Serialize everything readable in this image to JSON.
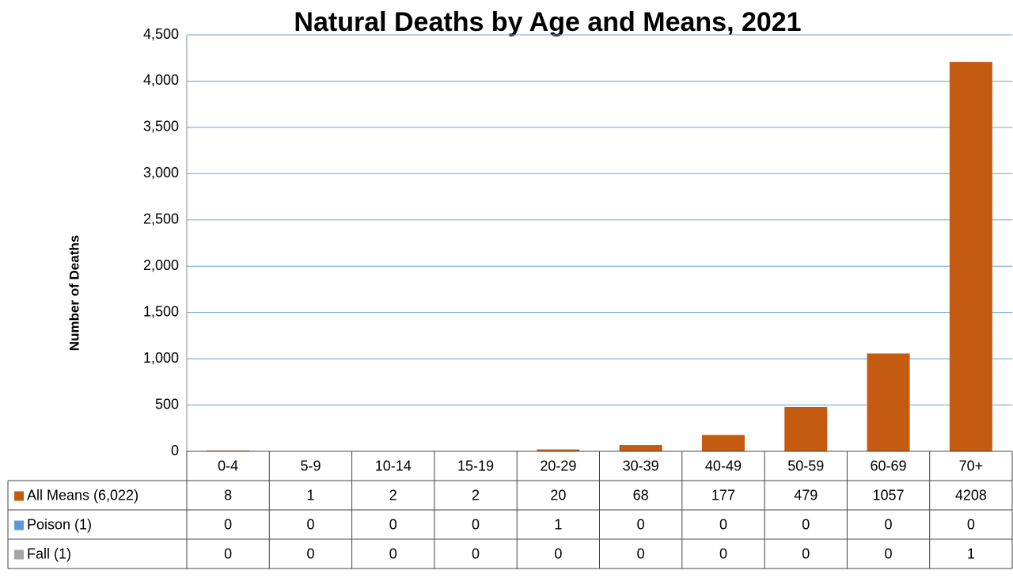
{
  "chart_data": {
    "type": "stacked_bar",
    "title": "Natural Deaths by Age and Means, 2021",
    "y_axis_label": "Number of Deaths",
    "categories": [
      "0-4",
      "5-9",
      "10-14",
      "15-19",
      "20-29",
      "30-39",
      "40-49",
      "50-59",
      "60-69",
      "70+"
    ],
    "series": [
      {
        "name": "All Means (6,022)",
        "color": "#c55a11",
        "values": [
          8,
          1,
          2,
          2,
          20,
          68,
          177,
          479,
          1057,
          4208
        ]
      },
      {
        "name": "Poison (1)",
        "color": "#5b9bd5",
        "values": [
          0,
          0,
          0,
          0,
          1,
          0,
          0,
          0,
          0,
          0
        ]
      },
      {
        "name": "Fall (1)",
        "color": "#a5a5a5",
        "values": [
          0,
          0,
          0,
          0,
          0,
          0,
          0,
          0,
          0,
          1
        ]
      }
    ],
    "ylim": [
      0,
      4500
    ],
    "yticks": [
      0,
      500,
      {
        "value": 1000,
        "label": "1,000"
      },
      {
        "value": 1500,
        "label": "1,500"
      },
      {
        "value": 2000,
        "label": "2,000"
      },
      {
        "value": 2500,
        "label": "2,500"
      },
      {
        "value": 3000,
        "label": "3,000"
      },
      {
        "value": 3500,
        "label": "3,500"
      },
      {
        "value": 4000,
        "label": "4,000"
      },
      {
        "value": 4500,
        "label": "4,500"
      }
    ],
    "grid": true
  }
}
